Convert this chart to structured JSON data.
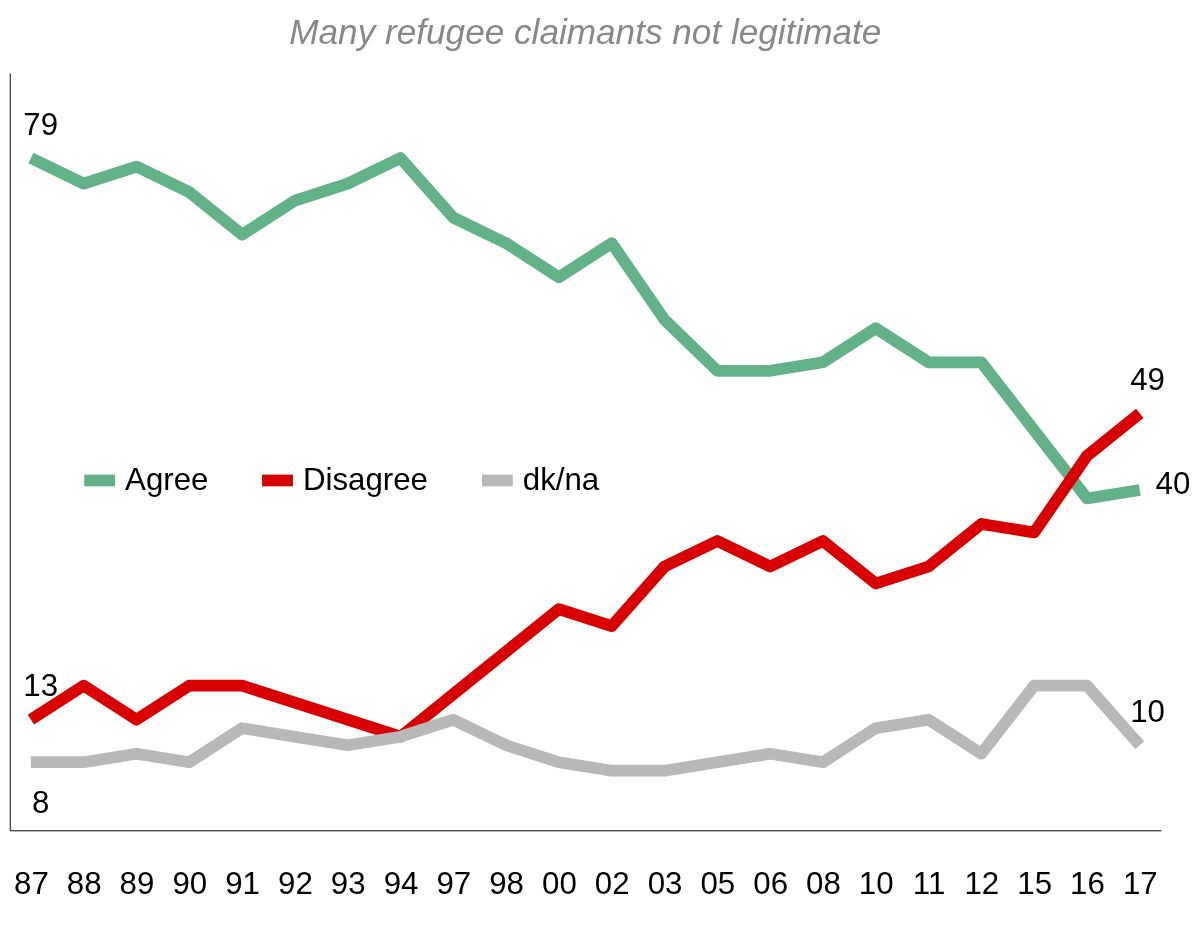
{
  "chart_data": {
    "type": "line",
    "title": "Many refugee claimants not legitimate",
    "categories": [
      "87",
      "88",
      "89",
      "90",
      "91",
      "92",
      "93",
      "94",
      "97",
      "98",
      "00",
      "02",
      "03",
      "05",
      "06",
      "08",
      "10",
      "11",
      "12",
      "15",
      "16",
      "17"
    ],
    "ylim": [
      0,
      89
    ],
    "tick_labels": "x",
    "legend": "left",
    "marker": "none",
    "line_style": "solid",
    "series": [
      {
        "name": "Agree",
        "color": "#62b289",
        "values": [
          79,
          76,
          78,
          75,
          70,
          74,
          76,
          79,
          72,
          69,
          65,
          69,
          60,
          54,
          54,
          55,
          59,
          55,
          55,
          47,
          39,
          40
        ],
        "value_labels": [
          "79",
          null,
          null,
          null,
          null,
          null,
          null,
          null,
          null,
          null,
          null,
          null,
          null,
          null,
          null,
          null,
          null,
          null,
          null,
          null,
          null,
          "40"
        ]
      },
      {
        "name": "Disagree",
        "color": "#d90000",
        "values": [
          13,
          17,
          13,
          17,
          17,
          15,
          13,
          11,
          16,
          21,
          26,
          24,
          31,
          34,
          31,
          34,
          29,
          31,
          36,
          35,
          44,
          49
        ],
        "value_labels": [
          "13",
          null,
          null,
          null,
          null,
          null,
          null,
          null,
          null,
          null,
          null,
          null,
          null,
          null,
          null,
          null,
          null,
          null,
          null,
          null,
          null,
          "49"
        ]
      },
      {
        "name": "dk/na",
        "color": "#b8b8b8",
        "values": [
          8,
          8,
          9,
          8,
          12,
          11,
          10,
          11,
          13,
          10,
          8,
          7,
          7,
          8,
          9,
          8,
          12,
          13,
          9,
          17,
          17,
          10
        ],
        "value_labels": [
          "8",
          null,
          null,
          null,
          null,
          null,
          null,
          null,
          null,
          null,
          null,
          null,
          null,
          null,
          null,
          null,
          null,
          null,
          null,
          null,
          null,
          "10"
        ]
      }
    ]
  }
}
